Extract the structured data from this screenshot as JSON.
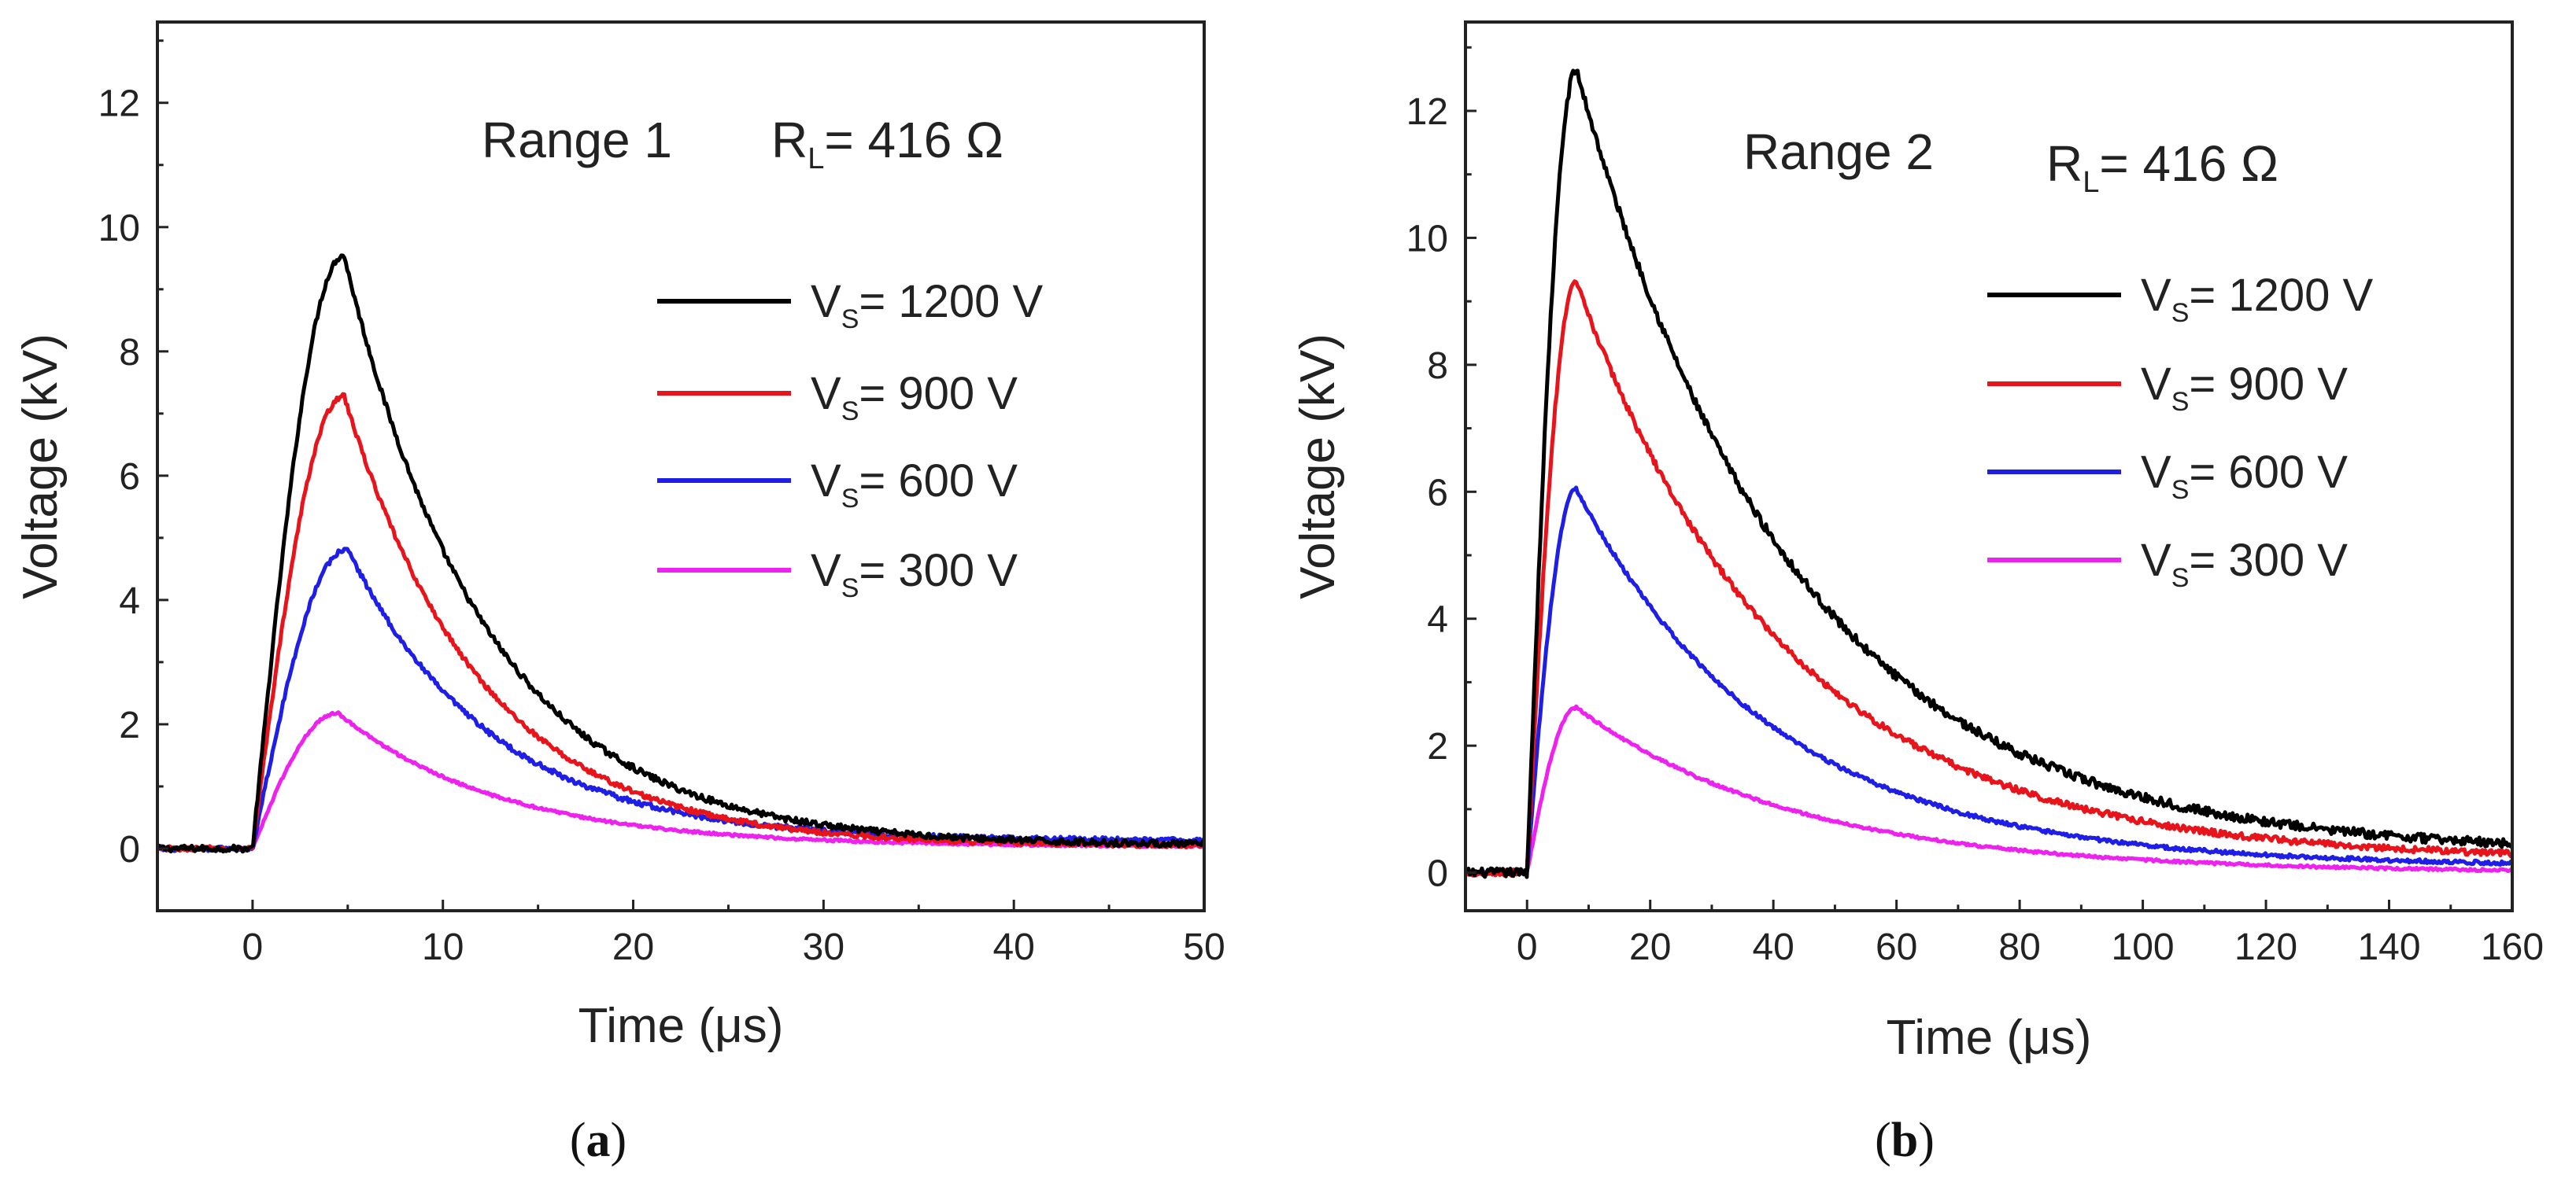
{
  "colors": {
    "1200": "#000000",
    "900": "#e8141b",
    "600": "#1e1ee6",
    "300": "#ee22ee",
    "axis": "#222222"
  },
  "chart_data": [
    {
      "id": "a",
      "type": "line",
      "panel_label": "a",
      "xlabel": "Time (μs)",
      "ylabel": "Voltage  (kV)",
      "xlim": [
        -5,
        50
      ],
      "ylim": [
        -1,
        13.3
      ],
      "xticks": [
        0,
        10,
        20,
        30,
        40,
        50
      ],
      "yticks": [
        0,
        2,
        4,
        6,
        8,
        10,
        12
      ],
      "annotation": {
        "range": "Range 1",
        "rl_main": "R",
        "rl_sub": "L",
        "rl_value": "= 416 Ω"
      },
      "legend_position": "center-right",
      "series": [
        {
          "key": "1200",
          "label_main": "V",
          "label_sub": "S",
          "label_value": "= 1200 V",
          "peak": 9.5,
          "tpeak": 4.8,
          "tau": 7.5,
          "offset": 0.05,
          "noise": 0.05
        },
        {
          "key": "900",
          "label_main": "V",
          "label_sub": "S",
          "label_value": "= 900 V",
          "peak": 7.25,
          "tpeak": 4.8,
          "tau": 7.2,
          "offset": 0.04,
          "noise": 0.04
        },
        {
          "key": "600",
          "label_main": "V",
          "label_sub": "S",
          "label_value": "= 600 V",
          "peak": 4.7,
          "tpeak": 5.0,
          "tau": 7.5,
          "offset": 0.12,
          "noise": 0.04
        },
        {
          "key": "300",
          "label_main": "V",
          "label_sub": "S",
          "label_value": "= 300 V",
          "peak": 2.15,
          "tpeak": 4.5,
          "tau": 8.5,
          "offset": 0.03,
          "noise": 0.02
        }
      ]
    },
    {
      "id": "b",
      "type": "line",
      "panel_label": "b",
      "xlabel": "Time (μs)",
      "ylabel": "Voltage  (kV)",
      "xlim": [
        -10,
        160
      ],
      "ylim": [
        -0.6,
        13.4
      ],
      "xticks": [
        0,
        20,
        40,
        60,
        80,
        100,
        120,
        140,
        160
      ],
      "yticks": [
        0,
        2,
        4,
        6,
        8,
        10,
        12
      ],
      "annotation": {
        "range": "Range 2",
        "rl_main": "R",
        "rl_sub": "L",
        "rl_value": "= 416 Ω"
      },
      "legend_position": "center-right",
      "series": [
        {
          "key": "1200",
          "label_main": "V",
          "label_sub": "S",
          "label_value": "= 1200 V",
          "peak": 12.35,
          "tpeak": 8,
          "tau": 35,
          "offset": 0.3,
          "noise": 0.07
        },
        {
          "key": "900",
          "label_main": "V",
          "label_sub": "S",
          "label_value": "= 900 V",
          "peak": 9.1,
          "tpeak": 8,
          "tau": 34,
          "offset": 0.2,
          "noise": 0.05
        },
        {
          "key": "600",
          "label_main": "V",
          "label_sub": "S",
          "label_value": "= 600 V",
          "peak": 5.95,
          "tpeak": 8,
          "tau": 32,
          "offset": 0.1,
          "noise": 0.03
        },
        {
          "key": "300",
          "label_main": "V",
          "label_sub": "S",
          "label_value": "= 300 V",
          "peak": 2.6,
          "tpeak": 8,
          "tau": 36,
          "offset": 0.0,
          "noise": 0.02
        }
      ]
    }
  ]
}
